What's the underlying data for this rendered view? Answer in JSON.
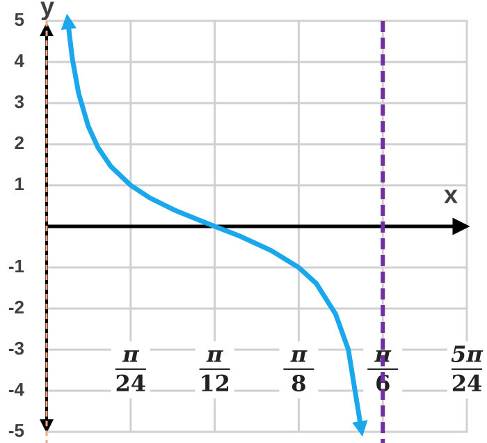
{
  "chart_data": {
    "type": "line",
    "x_label": "x",
    "y_label": "y",
    "xlim": [
      0,
      0.6545
    ],
    "ylim": [
      -5,
      5
    ],
    "xticks": [
      {
        "value": 0.1309,
        "label": "π/24"
      },
      {
        "value": 0.2618,
        "label": "π/12"
      },
      {
        "value": 0.3927,
        "label": "π/8"
      },
      {
        "value": 0.5236,
        "label": "π/6"
      },
      {
        "value": 0.6545,
        "label": "5π/24"
      }
    ],
    "yticks": [
      5,
      4,
      3,
      2,
      1,
      -1,
      -2,
      -3,
      -4,
      -5
    ],
    "grid": true,
    "color": "#1aa7ec",
    "x": [
      0.033,
      0.04,
      0.05,
      0.065,
      0.08,
      0.1,
      0.1309,
      0.16,
      0.2,
      0.2618,
      0.3,
      0.35,
      0.3927,
      0.42,
      0.45,
      0.47,
      0.49
    ],
    "values": [
      4.99,
      4.09,
      3.23,
      2.43,
      1.92,
      1.46,
      1.0,
      0.7,
      0.39,
      0,
      -0.23,
      -0.59,
      -1.0,
      -1.39,
      -2.13,
      -3.0,
      -4.93
    ],
    "asymptotes": [
      {
        "x": 0,
        "color": "#f4a582"
      },
      {
        "x": 0.5236,
        "color": "#7030a0"
      }
    ]
  }
}
